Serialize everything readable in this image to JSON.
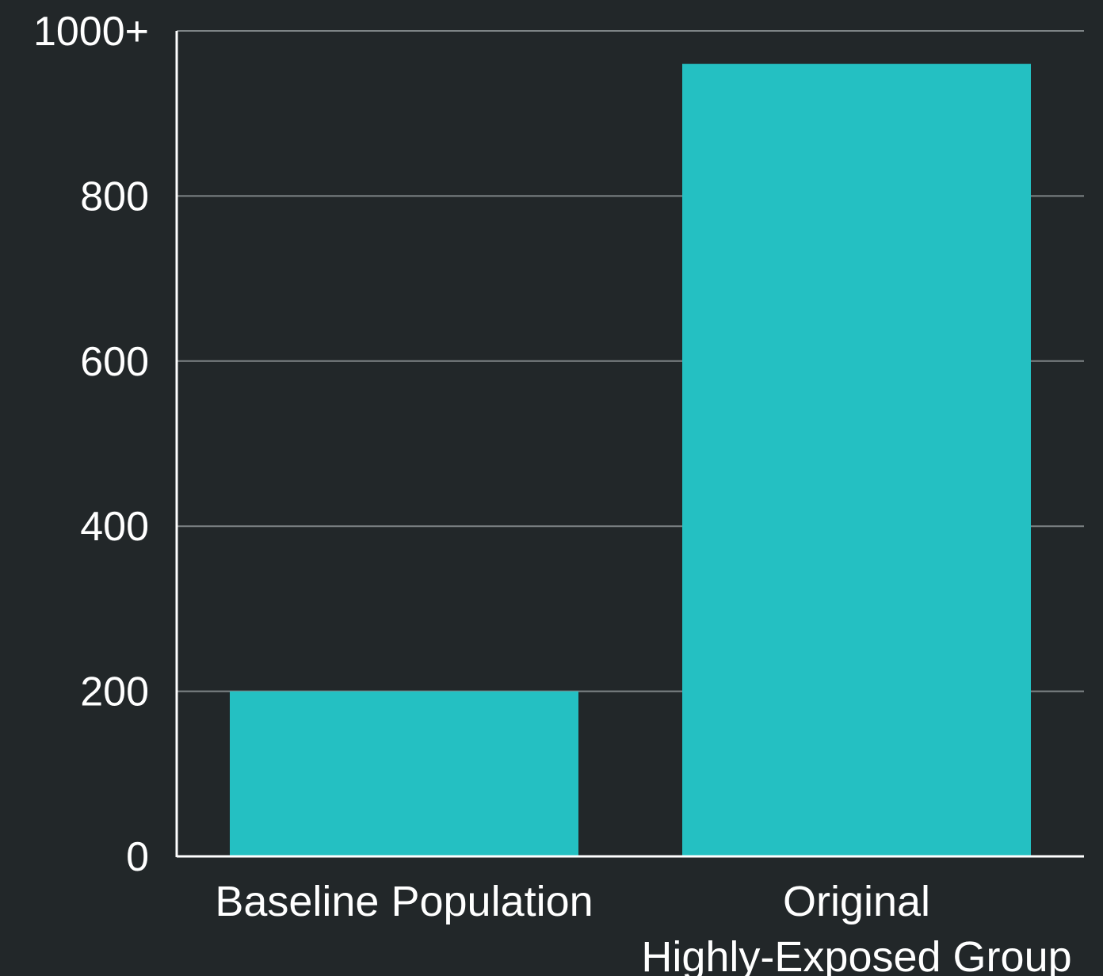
{
  "colors": {
    "background": "#222729",
    "bar": "#24c0c2",
    "grid": "#7e8486",
    "axis": "#ffffff",
    "text": "#ffffff"
  },
  "chart_data": {
    "type": "bar",
    "categories": [
      [
        "Baseline Population"
      ],
      [
        "Original",
        "Highly-Exposed Group"
      ]
    ],
    "values": [
      200,
      960
    ],
    "ylim": [
      0,
      1000
    ],
    "yticks": [
      {
        "value": 0,
        "label": "0"
      },
      {
        "value": 200,
        "label": "200"
      },
      {
        "value": 400,
        "label": "400"
      },
      {
        "value": 600,
        "label": "600"
      },
      {
        "value": 800,
        "label": "800"
      },
      {
        "value": 1000,
        "label": "1000+"
      }
    ],
    "grid": true,
    "title": "",
    "xlabel": "",
    "ylabel": ""
  }
}
